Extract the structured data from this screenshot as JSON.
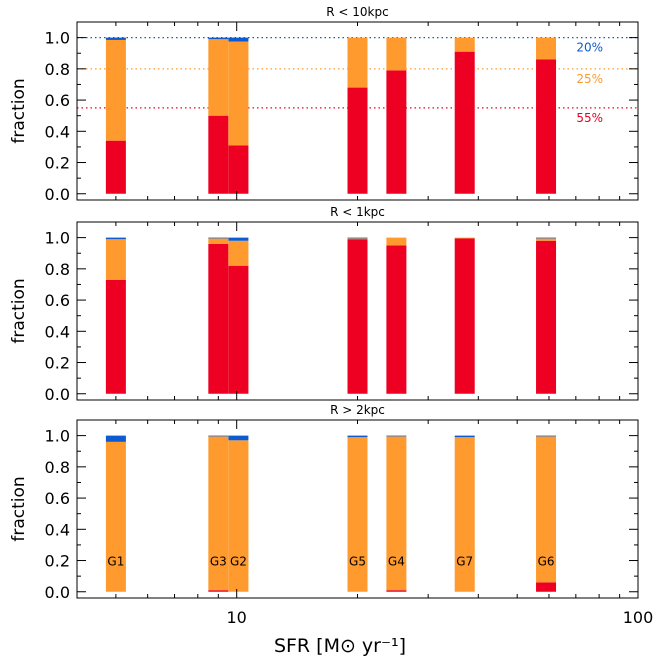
{
  "chart_data": {
    "type": "bar",
    "layout": "stacked-bars, three vertically stacked panels sharing a log x-axis",
    "xlabel": "SFR [M⊙ yr⁻¹]",
    "x_scale": "log",
    "xlim": [
      4,
      100
    ],
    "x_tick_labels": [
      "10",
      "100"
    ],
    "ylabel": "fraction",
    "ylim": [
      -0.04,
      1.1
    ],
    "y_tick_labels": [
      "0.0",
      "0.2",
      "0.4",
      "0.6",
      "0.8",
      "1.0"
    ],
    "colors": {
      "red": "#ee0022",
      "orange": "#ff9a2e",
      "blue": "#0d5bd1"
    },
    "galaxies": [
      {
        "name": "G1",
        "sfr": 5.0
      },
      {
        "name": "G3",
        "sfr": 9.0
      },
      {
        "name": "G2",
        "sfr": 10.1
      },
      {
        "name": "G5",
        "sfr": 20.0
      },
      {
        "name": "G4",
        "sfr": 25.0
      },
      {
        "name": "G7",
        "sfr": 37.0
      },
      {
        "name": "G6",
        "sfr": 59.0
      }
    ],
    "panels": [
      {
        "title": "R < 10kpc",
        "show_galaxy_labels": false,
        "series": [
          {
            "color": "red",
            "values": [
              0.34,
              0.5,
              0.31,
              0.68,
              0.79,
              0.91,
              0.86
            ]
          },
          {
            "color": "orange",
            "values": [
              0.645,
              0.49,
              0.665,
              0.32,
              0.21,
              0.09,
              0.14
            ]
          },
          {
            "color": "blue",
            "values": [
              0.015,
              0.01,
              0.025,
              0.0,
              0.0,
              0.0,
              0.0
            ]
          }
        ],
        "reference_lines": [
          {
            "y": 1.0,
            "color": "blue",
            "label": "20%"
          },
          {
            "y": 0.8,
            "color": "orange",
            "label": "25%"
          },
          {
            "y": 0.55,
            "color": "red",
            "label": "55%"
          }
        ]
      },
      {
        "title": "R < 1kpc",
        "show_galaxy_labels": false,
        "series": [
          {
            "color": "red",
            "values": [
              0.73,
              0.96,
              0.82,
              0.99,
              0.95,
              0.995,
              0.98
            ]
          },
          {
            "color": "orange",
            "values": [
              0.26,
              0.035,
              0.16,
              0.005,
              0.05,
              0.005,
              0.015
            ]
          },
          {
            "color": "blue",
            "values": [
              0.01,
              0.005,
              0.02,
              0.005,
              0.0,
              0.0,
              0.005
            ]
          }
        ],
        "reference_lines": []
      },
      {
        "title": "R > 2kpc",
        "show_galaxy_labels": true,
        "series": [
          {
            "color": "red",
            "values": [
              0.0,
              0.01,
              0.0,
              0.0,
              0.01,
              0.0,
              0.06
            ]
          },
          {
            "color": "orange",
            "values": [
              0.96,
              0.985,
              0.97,
              0.99,
              0.985,
              0.99,
              0.935
            ]
          },
          {
            "color": "blue",
            "values": [
              0.04,
              0.005,
              0.03,
              0.01,
              0.005,
              0.01,
              0.005
            ]
          }
        ],
        "reference_lines": []
      }
    ]
  }
}
